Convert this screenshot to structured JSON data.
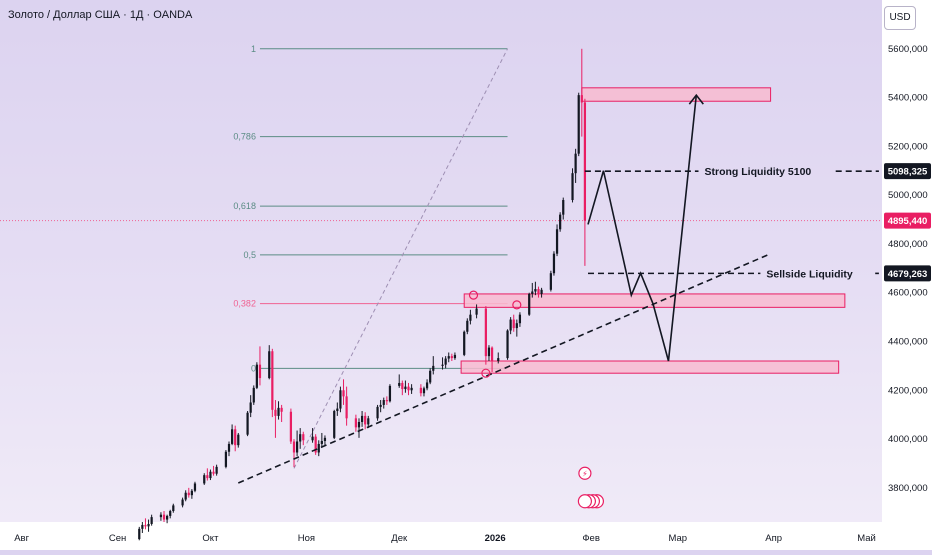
{
  "header": {
    "symbol_title": "Золото / Доллар США · 1Д · OANDA",
    "currency_button": "USD"
  },
  "colors": {
    "bull": "#131722",
    "bear": "#e91e63",
    "zone_fill": "#f8bbd0",
    "zone_border": "#e91e63",
    "fib_line": "#5b8c85",
    "fib_382": "#f06292",
    "current_price_line": "#f06292",
    "trendline": "#131722",
    "dotted_diagonal": "#9e8fb3"
  },
  "chart_data": {
    "type": "candlestick",
    "title": "Золото / Доллар США · 1Д · OANDA",
    "x_axis": {
      "tick_labels": [
        "Авг",
        "Сен",
        "Окт",
        "Ноя",
        "Дек",
        "2026",
        "Фев",
        "Мар",
        "Апр",
        "Май"
      ],
      "tick_dates": [
        "2025-08-01",
        "2025-09-01",
        "2025-10-01",
        "2025-11-01",
        "2025-12-01",
        "2026-01-01",
        "2026-02-01",
        "2026-03-01",
        "2026-04-01",
        "2026-05-01"
      ],
      "range": [
        "2025-07-25",
        "2026-05-06"
      ]
    },
    "y_axis": {
      "tick_labels": [
        "5600,000",
        "5400,000",
        "5200,000",
        "5000,000",
        "4800,000",
        "4600,000",
        "4400,000",
        "4200,000",
        "4000,000",
        "3800,000"
      ],
      "ticks": [
        5600,
        5400,
        5200,
        5000,
        4800,
        4600,
        4400,
        4200,
        4000,
        3800
      ],
      "range": [
        3660,
        5800
      ]
    },
    "price_labels": [
      {
        "value": 5098.325,
        "text": "5098,325",
        "style": "dark"
      },
      {
        "value": 4895.44,
        "text": "4895,440",
        "style": "pink"
      },
      {
        "value": 4679.263,
        "text": "4679,263",
        "style": "dark"
      }
    ],
    "current_price": 4895.44,
    "candles": [
      [
        "2025-09-08",
        3590,
        3640,
        3585,
        3632
      ],
      [
        "2025-09-09",
        3632,
        3660,
        3615,
        3648
      ],
      [
        "2025-09-10",
        3648,
        3675,
        3630,
        3642
      ],
      [
        "2025-09-11",
        3642,
        3670,
        3620,
        3652
      ],
      [
        "2025-09-12",
        3652,
        3690,
        3645,
        3680
      ],
      [
        "2025-09-15",
        3680,
        3700,
        3665,
        3690
      ],
      [
        "2025-09-16",
        3690,
        3705,
        3660,
        3670
      ],
      [
        "2025-09-17",
        3670,
        3690,
        3655,
        3685
      ],
      [
        "2025-09-18",
        3685,
        3710,
        3675,
        3705
      ],
      [
        "2025-09-19",
        3705,
        3735,
        3698,
        3728
      ],
      [
        "2025-09-22",
        3728,
        3760,
        3720,
        3752
      ],
      [
        "2025-09-23",
        3752,
        3790,
        3745,
        3780
      ],
      [
        "2025-09-24",
        3780,
        3800,
        3760,
        3770
      ],
      [
        "2025-09-25",
        3770,
        3795,
        3755,
        3788
      ],
      [
        "2025-09-26",
        3788,
        3825,
        3782,
        3818
      ],
      [
        "2025-09-29",
        3818,
        3860,
        3812,
        3852
      ],
      [
        "2025-09-30",
        3852,
        3880,
        3830,
        3840
      ],
      [
        "2025-10-01",
        3840,
        3875,
        3832,
        3866
      ],
      [
        "2025-10-02",
        3866,
        3890,
        3850,
        3858
      ],
      [
        "2025-10-03",
        3858,
        3895,
        3850,
        3886
      ],
      [
        "2025-10-06",
        3886,
        3955,
        3880,
        3948
      ],
      [
        "2025-10-07",
        3948,
        3990,
        3930,
        3980
      ],
      [
        "2025-10-08",
        3980,
        4060,
        3975,
        4040
      ],
      [
        "2025-10-09",
        4040,
        4055,
        3950,
        3975
      ],
      [
        "2025-10-10",
        3975,
        4025,
        3965,
        4018
      ],
      [
        "2025-10-13",
        4018,
        4115,
        4012,
        4108
      ],
      [
        "2025-10-14",
        4108,
        4180,
        4090,
        4150
      ],
      [
        "2025-10-15",
        4150,
        4220,
        4140,
        4210
      ],
      [
        "2025-10-16",
        4210,
        4315,
        4205,
        4305
      ],
      [
        "2025-10-17",
        4305,
        4380,
        4220,
        4250
      ],
      [
        "2025-10-20",
        4250,
        4385,
        4245,
        4360
      ],
      [
        "2025-10-21",
        4360,
        4370,
        4090,
        4120
      ],
      [
        "2025-10-22",
        4120,
        4160,
        4005,
        4095
      ],
      [
        "2025-10-23",
        4095,
        4155,
        4080,
        4128
      ],
      [
        "2025-10-24",
        4128,
        4140,
        4070,
        4112
      ],
      [
        "2025-10-27",
        4112,
        4125,
        3980,
        3990
      ],
      [
        "2025-10-28",
        3990,
        4000,
        3885,
        3945
      ],
      [
        "2025-10-29",
        3945,
        4035,
        3930,
        3990
      ],
      [
        "2025-10-30",
        3990,
        4045,
        3960,
        4020
      ],
      [
        "2025-10-31",
        4020,
        4030,
        3975,
        3995
      ],
      [
        "2025-11-03",
        3995,
        4045,
        3985,
        4010
      ],
      [
        "2025-11-04",
        4010,
        4020,
        3935,
        3945
      ],
      [
        "2025-11-05",
        3945,
        3995,
        3930,
        3980
      ],
      [
        "2025-11-06",
        3980,
        4025,
        3965,
        3992
      ],
      [
        "2025-11-07",
        3992,
        4015,
        3975,
        4005
      ],
      [
        "2025-11-10",
        4005,
        4120,
        4000,
        4115
      ],
      [
        "2025-11-11",
        4115,
        4150,
        4095,
        4125
      ],
      [
        "2025-11-12",
        4125,
        4215,
        4110,
        4200
      ],
      [
        "2025-11-13",
        4200,
        4245,
        4140,
        4175
      ],
      [
        "2025-11-14",
        4175,
        4215,
        4055,
        4085
      ],
      [
        "2025-11-17",
        4085,
        4100,
        4030,
        4048
      ],
      [
        "2025-11-18",
        4048,
        4085,
        4005,
        4070
      ],
      [
        "2025-11-19",
        4070,
        4115,
        4050,
        4095
      ],
      [
        "2025-11-20",
        4095,
        4110,
        4040,
        4060
      ],
      [
        "2025-11-21",
        4060,
        4095,
        4045,
        4085
      ],
      [
        "2025-11-24",
        4085,
        4140,
        4075,
        4132
      ],
      [
        "2025-11-25",
        4132,
        4160,
        4110,
        4140
      ],
      [
        "2025-11-26",
        4140,
        4170,
        4125,
        4160
      ],
      [
        "2025-11-27",
        4160,
        4175,
        4140,
        4155
      ],
      [
        "2025-11-28",
        4155,
        4225,
        4150,
        4218
      ],
      [
        "2025-12-01",
        4218,
        4265,
        4210,
        4230
      ],
      [
        "2025-12-02",
        4230,
        4240,
        4180,
        4205
      ],
      [
        "2025-12-03",
        4205,
        4240,
        4190,
        4215
      ],
      [
        "2025-12-04",
        4215,
        4230,
        4180,
        4200
      ],
      [
        "2025-12-05",
        4200,
        4225,
        4185,
        4210
      ],
      [
        "2025-12-08",
        4210,
        4225,
        4175,
        4188
      ],
      [
        "2025-12-09",
        4188,
        4215,
        4175,
        4208
      ],
      [
        "2025-12-10",
        4208,
        4245,
        4200,
        4232
      ],
      [
        "2025-12-11",
        4232,
        4290,
        4225,
        4280
      ],
      [
        "2025-12-12",
        4280,
        4340,
        4265,
        4300
      ],
      [
        "2025-12-15",
        4300,
        4335,
        4285,
        4305
      ],
      [
        "2025-12-16",
        4305,
        4340,
        4290,
        4330
      ],
      [
        "2025-12-17",
        4330,
        4355,
        4315,
        4340
      ],
      [
        "2025-12-18",
        4340,
        4350,
        4320,
        4332
      ],
      [
        "2025-12-19",
        4332,
        4355,
        4325,
        4345
      ],
      [
        "2025-12-22",
        4345,
        4445,
        4340,
        4440
      ],
      [
        "2025-12-23",
        4440,
        4495,
        4430,
        4485
      ],
      [
        "2025-12-24",
        4485,
        4530,
        4470,
        4510
      ],
      [
        "2025-12-26",
        4510,
        4552,
        4495,
        4535
      ],
      [
        "2025-12-29",
        4535,
        4545,
        4305,
        4340
      ],
      [
        "2025-12-30",
        4340,
        4385,
        4320,
        4375
      ],
      [
        "2025-12-31",
        4375,
        4380,
        4275,
        4320
      ],
      [
        "2026-01-02",
        4320,
        4355,
        4310,
        4332
      ],
      [
        "2026-01-05",
        4332,
        4450,
        4325,
        4445
      ],
      [
        "2026-01-06",
        4445,
        4500,
        4430,
        4490
      ],
      [
        "2026-01-07",
        4490,
        4510,
        4440,
        4455
      ],
      [
        "2026-01-08",
        4455,
        4490,
        4420,
        4475
      ],
      [
        "2026-01-09",
        4475,
        4520,
        4460,
        4510
      ],
      [
        "2026-01-12",
        4510,
        4600,
        4505,
        4595
      ],
      [
        "2026-01-13",
        4595,
        4640,
        4580,
        4605
      ],
      [
        "2026-01-14",
        4605,
        4645,
        4590,
        4615
      ],
      [
        "2026-01-15",
        4615,
        4625,
        4580,
        4595
      ],
      [
        "2026-01-16",
        4595,
        4620,
        4580,
        4612
      ],
      [
        "2026-01-19",
        4612,
        4690,
        4605,
        4680
      ],
      [
        "2026-01-20",
        4680,
        4770,
        4670,
        4760
      ],
      [
        "2026-01-21",
        4760,
        4880,
        4750,
        4860
      ],
      [
        "2026-01-22",
        4860,
        4930,
        4850,
        4920
      ],
      [
        "2026-01-23",
        4920,
        4990,
        4900,
        4980
      ],
      [
        "2026-01-26",
        4980,
        5110,
        4970,
        5090
      ],
      [
        "2026-01-27",
        5090,
        5190,
        5050,
        5170
      ],
      [
        "2026-01-28",
        5170,
        5420,
        5160,
        5410
      ],
      [
        "2026-01-29",
        5410,
        5600,
        5240,
        5380
      ],
      [
        "2026-01-30",
        5380,
        5395,
        4710,
        4895.44
      ]
    ],
    "fibonacci": {
      "levels": [
        {
          "label": "1",
          "price": 5600
        },
        {
          "label": "0,786",
          "price": 5240
        },
        {
          "label": "0,618",
          "price": 4955
        },
        {
          "label": "0,5",
          "price": 4755
        },
        {
          "label": "0,382",
          "price": 4555
        },
        {
          "label": "0",
          "price": 4290
        }
      ],
      "start_date": "2025-10-17",
      "end_date": "2026-01-05"
    },
    "dotted_diagonal": {
      "from": [
        "2025-10-28",
        3880
      ],
      "to": [
        "2026-01-05",
        5600
      ]
    },
    "zones": [
      {
        "name": "supply-zone-top",
        "from_date": "2026-01-29",
        "to_date": "2026-03-31",
        "low": 5385,
        "high": 5440
      },
      {
        "name": "demand-zone-mid",
        "from_date": "2025-12-22",
        "to_date": "2026-04-24",
        "low": 4540,
        "high": 4595
      },
      {
        "name": "demand-zone-low",
        "from_date": "2025-12-21",
        "to_date": "2026-04-22",
        "low": 4270,
        "high": 4320
      }
    ],
    "trendline": {
      "from": [
        "2025-10-10",
        3820
      ],
      "to": [
        "2026-03-31",
        4760
      ]
    },
    "hlines": [
      {
        "name": "strong-liquidity",
        "label": "Strong Liquidity  5100",
        "price": 5098.325,
        "from_date": "2026-01-30",
        "to_date": "2026-05-05"
      },
      {
        "name": "sellside-liquidity",
        "label": "Sellside Liquidity",
        "price": 4679.263,
        "from_date": "2026-01-31",
        "to_date": "2026-05-05"
      }
    ],
    "projection_path": [
      [
        "2026-01-31",
        4880
      ],
      [
        "2026-02-05",
        5100
      ],
      [
        "2026-02-14",
        4590
      ],
      [
        "2026-02-17",
        4680
      ],
      [
        "2026-02-21",
        4555
      ],
      [
        "2026-02-26",
        4320
      ],
      [
        "2026-03-07",
        5410
      ]
    ],
    "markers": [
      {
        "date": "2025-12-25",
        "price": 4590
      },
      {
        "date": "2025-12-29",
        "price": 4270
      },
      {
        "date": "2026-01-08",
        "price": 4550
      },
      {
        "date": "2026-01-30",
        "price": 3745
      }
    ],
    "grid": false,
    "legend": "none"
  }
}
